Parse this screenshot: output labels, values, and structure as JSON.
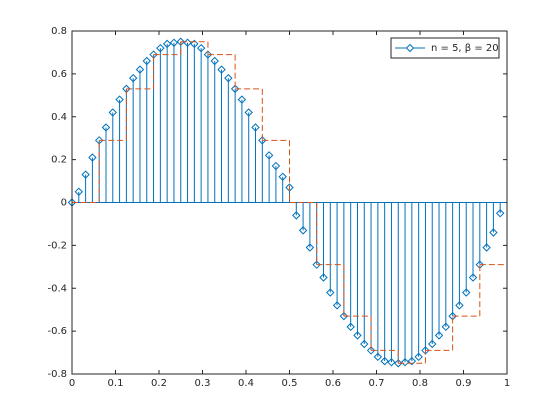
{
  "chart_data": {
    "type": "stem",
    "xlim": [
      0,
      1
    ],
    "xticks": [
      0,
      0.1,
      0.2,
      0.3,
      0.4,
      0.5,
      0.6,
      0.7,
      0.8,
      0.9,
      1
    ],
    "ylim": [
      -0.8,
      0.8
    ],
    "yticks": [
      -0.8,
      -0.6,
      -0.4,
      -0.2,
      0,
      0.2,
      0.4,
      0.6,
      0.8
    ],
    "legend": "northeast",
    "series": [
      {
        "name": "n = 5, β = 20",
        "type": "stem",
        "color": "#0072bd",
        "x": [
          0,
          0.015625,
          0.03125,
          0.046875,
          0.0625,
          0.078125,
          0.09375,
          0.109375,
          0.125,
          0.140625,
          0.15625,
          0.171875,
          0.1875,
          0.203125,
          0.21875,
          0.234375,
          0.25,
          0.265625,
          0.28125,
          0.296875,
          0.3125,
          0.328125,
          0.34375,
          0.359375,
          0.375,
          0.390625,
          0.40625,
          0.421875,
          0.4375,
          0.453125,
          0.46875,
          0.484375,
          0.5,
          0.515625,
          0.53125,
          0.546875,
          0.5625,
          0.578125,
          0.59375,
          0.609375,
          0.625,
          0.640625,
          0.65625,
          0.671875,
          0.6875,
          0.703125,
          0.71875,
          0.734375,
          0.75,
          0.765625,
          0.78125,
          0.796875,
          0.8125,
          0.828125,
          0.84375,
          0.859375,
          0.875,
          0.890625,
          0.90625,
          0.921875,
          0.9375,
          0.953125,
          0.96875,
          0.984375
        ],
        "values": [
          0,
          0.05,
          0.13,
          0.21,
          0.29,
          0.35,
          0.42,
          0.48,
          0.53,
          0.58,
          0.62,
          0.66,
          0.69,
          0.72,
          0.74,
          0.745,
          0.75,
          0.745,
          0.74,
          0.72,
          0.69,
          0.66,
          0.62,
          0.58,
          0.53,
          0.48,
          0.42,
          0.35,
          0.29,
          0.22,
          0.17,
          0.12,
          0.07,
          -0.06,
          -0.13,
          -0.21,
          -0.29,
          -0.35,
          -0.42,
          -0.48,
          -0.53,
          -0.58,
          -0.62,
          -0.66,
          -0.69,
          -0.72,
          -0.74,
          -0.745,
          -0.75,
          -0.745,
          -0.74,
          -0.72,
          -0.69,
          -0.66,
          -0.62,
          -0.58,
          -0.53,
          -0.48,
          -0.42,
          -0.35,
          -0.29,
          -0.21,
          -0.14,
          -0.05
        ]
      },
      {
        "type": "stairs",
        "color": "#d95319",
        "x": [
          0,
          0.0625,
          0.125,
          0.1875,
          0.25,
          0.3125,
          0.375,
          0.4375,
          0.5,
          0.5625,
          0.625,
          0.6875,
          0.75,
          0.8125,
          0.875,
          0.9375
        ],
        "values": [
          0,
          0.29,
          0.53,
          0.69,
          0.75,
          0.69,
          0.53,
          0.29,
          0,
          -0.29,
          -0.53,
          -0.69,
          -0.75,
          -0.69,
          -0.53,
          -0.29
        ]
      }
    ]
  }
}
